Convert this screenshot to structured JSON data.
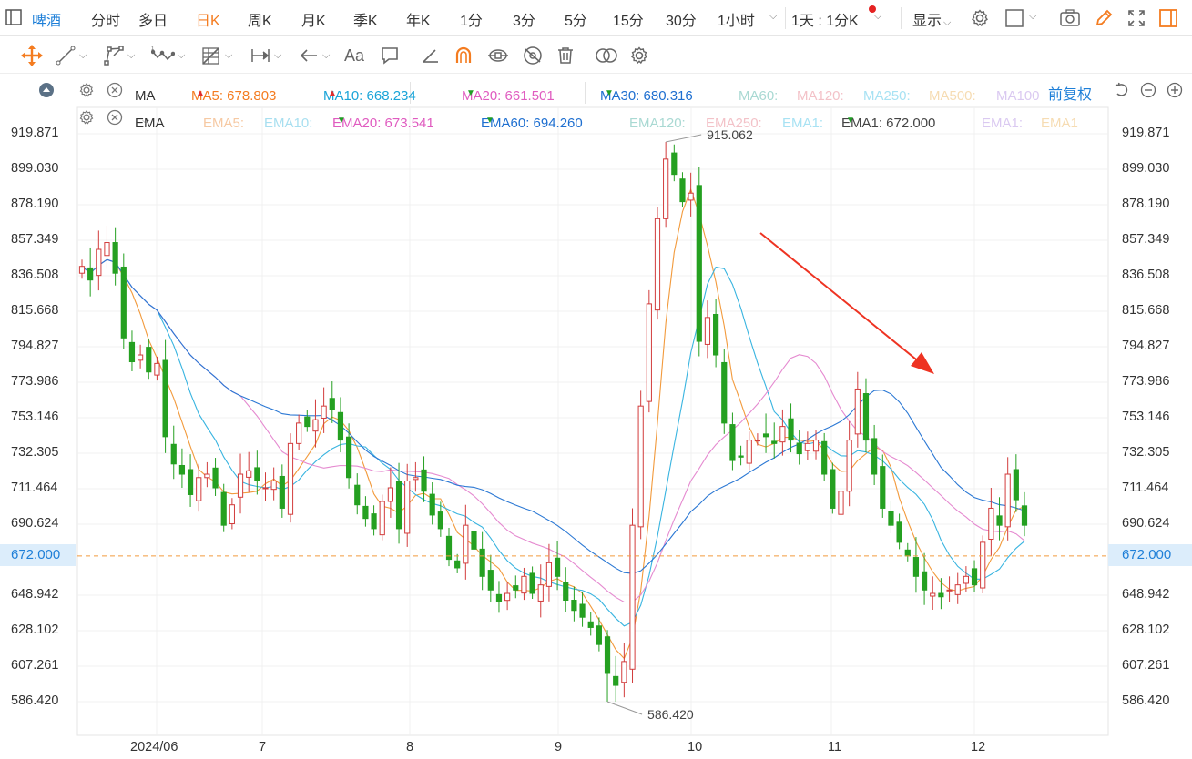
{
  "topbar": {
    "instrument": "啤酒",
    "periods": [
      "分时",
      "多日",
      "日K",
      "周K",
      "月K",
      "季K",
      "年K",
      "1分",
      "3分",
      "5分",
      "15分",
      "30分",
      "1小时"
    ],
    "active_period": "日K",
    "interval_label": "1天 : 1分K",
    "display_label": "显示"
  },
  "legend_ma": {
    "title": "MA",
    "items": [
      {
        "label": "MA5: 678.803",
        "color": "#f47c20",
        "dir": "up"
      },
      {
        "label": "MA10: 668.234",
        "color": "#1aa4d8",
        "dir": "up"
      },
      {
        "label": "MA20: 661.501",
        "color": "#e05cc0",
        "dir": "down"
      },
      {
        "label": "MA30: 680.316",
        "color": "#1e6fd0",
        "dir": "down"
      },
      {
        "label": "MA60:",
        "color": "#a9d9d3",
        "dir": ""
      },
      {
        "label": "MA120:",
        "color": "#f3c2c8",
        "dir": ""
      },
      {
        "label": "MA250:",
        "color": "#a8e2f3",
        "dir": ""
      },
      {
        "label": "MA500:",
        "color": "#f6dcb3",
        "dir": ""
      },
      {
        "label": "MA100",
        "color": "#dac9f1",
        "dir": ""
      }
    ],
    "adjust_label": "前复权"
  },
  "legend_ema": {
    "title": "EMA",
    "items": [
      {
        "label": "EMA5:",
        "color": "#f6c9a3",
        "dir": ""
      },
      {
        "label": "EMA10:",
        "color": "#a8dff0",
        "dir": ""
      },
      {
        "label": "EMA20: 673.541",
        "color": "#e05cc0",
        "dir": "down"
      },
      {
        "label": "EMA60: 694.260",
        "color": "#1e6fd0",
        "dir": "down"
      },
      {
        "label": "EMA120:",
        "color": "#a9d9d3",
        "dir": ""
      },
      {
        "label": "EMA250:",
        "color": "#f3c2c8",
        "dir": ""
      },
      {
        "label": "EMA1:",
        "color": "#a8e2f3",
        "dir": ""
      },
      {
        "label": "EMA1: 672.000",
        "color": "#444444",
        "dir": "down"
      },
      {
        "label": "EMA1:",
        "color": "#dac9f1",
        "dir": ""
      },
      {
        "label": "EMA1",
        "color": "#f6dcb3",
        "dir": ""
      }
    ]
  },
  "axis": {
    "ticks": [
      "919.871",
      "899.030",
      "878.190",
      "857.349",
      "836.508",
      "815.668",
      "794.827",
      "773.986",
      "753.146",
      "732.305",
      "711.464",
      "690.624",
      "648.942",
      "628.102",
      "607.261",
      "586.420"
    ],
    "current_price": "672.000",
    "x_labels": [
      "2024/06",
      "7",
      "8",
      "9",
      "10",
      "11",
      "12"
    ]
  },
  "chart_data": {
    "type": "candlestick",
    "ylim": [
      575,
      935
    ],
    "high_label": "915.062",
    "low_label": "586.420",
    "current": 672.0,
    "colors": {
      "up": "#d23c3c",
      "down": "#25a021",
      "ma5": "#f29a3c",
      "ma10": "#38b4e0",
      "ma20": "#e58ad0",
      "ma30": "#2b78d4"
    },
    "closes": [
      842,
      834,
      852,
      856,
      838,
      800,
      786,
      790,
      780,
      785,
      742,
      726,
      720,
      708,
      718,
      720,
      712,
      690,
      702,
      720,
      722,
      716,
      712,
      716,
      700,
      738,
      750,
      748,
      752,
      760,
      758,
      740,
      718,
      702,
      694,
      688,
      704,
      712,
      688,
      716,
      718,
      710,
      696,
      688,
      670,
      665,
      690,
      676,
      660,
      652,
      645,
      650,
      652,
      660,
      650,
      655,
      668,
      660,
      646,
      640,
      636,
      630,
      620,
      603,
      596,
      610,
      690,
      760,
      820,
      870,
      905,
      896,
      880,
      885,
      798,
      812,
      790,
      750,
      728,
      730,
      740,
      740,
      742,
      738,
      748,
      740,
      732,
      738,
      740,
      720,
      700,
      710,
      740,
      770,
      740,
      720,
      700,
      690,
      680,
      672,
      660,
      652,
      650,
      648,
      652,
      655,
      660,
      655,
      680,
      700,
      690,
      720,
      705,
      690
    ]
  }
}
